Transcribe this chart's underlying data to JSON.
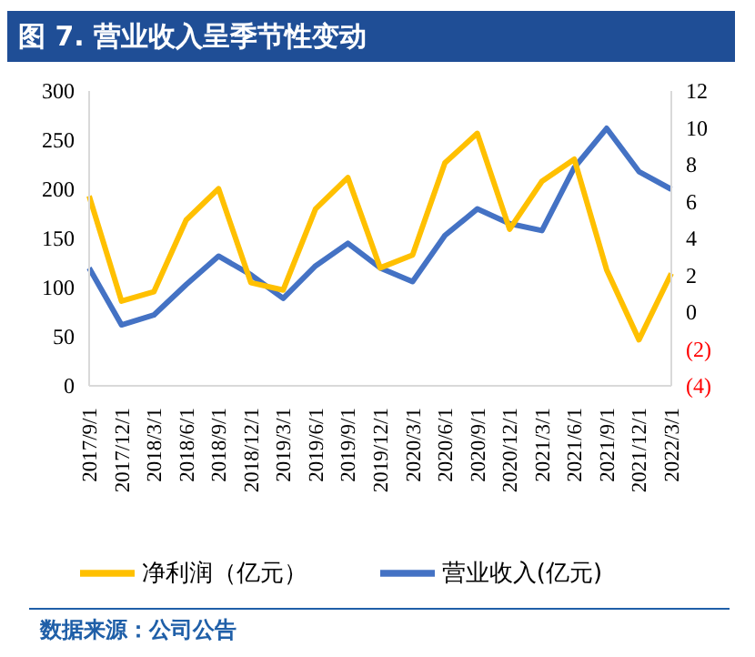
{
  "chart_data": {
    "type": "line",
    "title": "图 7. 营业收入呈季节性变动",
    "categories": [
      "2017/9/1",
      "2017/12/1",
      "2018/3/1",
      "2018/6/1",
      "2018/9/1",
      "2018/12/1",
      "2019/3/1",
      "2019/6/1",
      "2019/9/1",
      "2019/12/1",
      "2020/3/1",
      "2020/6/1",
      "2020/9/1",
      "2020/12/1",
      "2021/3/1",
      "2021/6/1",
      "2021/9/1",
      "2021/12/1",
      "2022/3/1"
    ],
    "series": [
      {
        "name": "营业收入(亿元)",
        "color": "#4472c4",
        "values": [
          120,
          62,
          72,
          103,
          132,
          113,
          89,
          122,
          145,
          120,
          106,
          153,
          180,
          165,
          158,
          222,
          262,
          218,
          200
        ]
      },
      {
        "name": "净利润（亿元）",
        "color": "#ffc000",
        "axis": "y2",
        "values": [
          6.3,
          0.6,
          1.1,
          5.0,
          6.7,
          1.6,
          1.2,
          5.6,
          7.3,
          2.4,
          3.1,
          8.1,
          9.7,
          4.5,
          7.1,
          8.3,
          2.3,
          -1.5,
          2.1
        ]
      }
    ],
    "ylim": [
      0,
      300
    ],
    "yticks": [
      0,
      50,
      100,
      150,
      200,
      250,
      300
    ],
    "y2lim": [
      -4,
      12
    ],
    "y2ticks": [
      {
        "value": -4,
        "label": "(4)"
      },
      {
        "value": -2,
        "label": "(2)"
      },
      0,
      2,
      4,
      6,
      8,
      10,
      12
    ],
    "legend": "bottom",
    "marker": "none",
    "line_style": "solid",
    "annotations": [
      "数据来源：公司公告"
    ]
  }
}
